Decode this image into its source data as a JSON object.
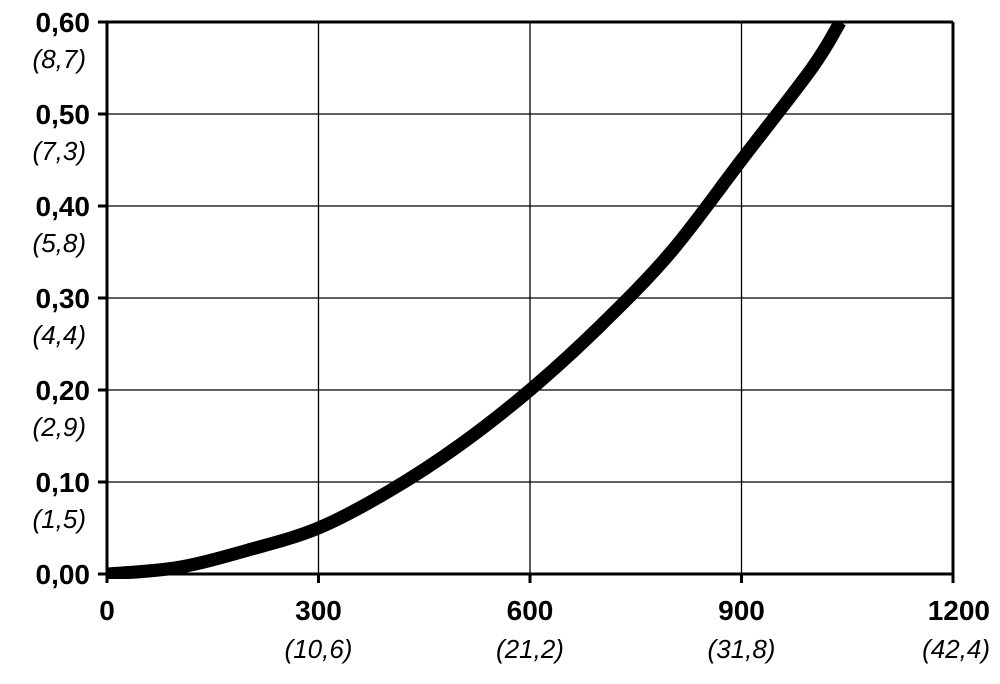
{
  "chart_data": {
    "type": "line",
    "title": "",
    "xlabel": "",
    "ylabel": "",
    "xlim": [
      0,
      1200
    ],
    "ylim": [
      0,
      0.6
    ],
    "grid": true,
    "x_ticks": [
      {
        "value": 0,
        "label": "0",
        "sublabel": ""
      },
      {
        "value": 300,
        "label": "300",
        "sublabel": "(10,6)"
      },
      {
        "value": 600,
        "label": "600",
        "sublabel": "(21,2)"
      },
      {
        "value": 900,
        "label": "900",
        "sublabel": "(31,8)"
      },
      {
        "value": 1200,
        "label": "1200",
        "sublabel": "(42,4)"
      }
    ],
    "y_ticks": [
      {
        "value": 0.0,
        "label": "0,00",
        "sublabel": ""
      },
      {
        "value": 0.1,
        "label": "0,10",
        "sublabel": "(1,5)"
      },
      {
        "value": 0.2,
        "label": "0,20",
        "sublabel": "(2,9)"
      },
      {
        "value": 0.3,
        "label": "0,30",
        "sublabel": "(4,4)"
      },
      {
        "value": 0.4,
        "label": "0,40",
        "sublabel": "(5,8)"
      },
      {
        "value": 0.5,
        "label": "0,50",
        "sublabel": "(7,3)"
      },
      {
        "value": 0.6,
        "label": "0,60",
        "sublabel": "(8,7)"
      }
    ],
    "series": [
      {
        "x": [
          0,
          100,
          200,
          300,
          400,
          500,
          600,
          700,
          800,
          900,
          1000,
          1040
        ],
        "y": [
          0.0,
          0.007,
          0.026,
          0.05,
          0.09,
          0.14,
          0.2,
          0.27,
          0.35,
          0.45,
          0.55,
          0.6
        ]
      }
    ]
  }
}
